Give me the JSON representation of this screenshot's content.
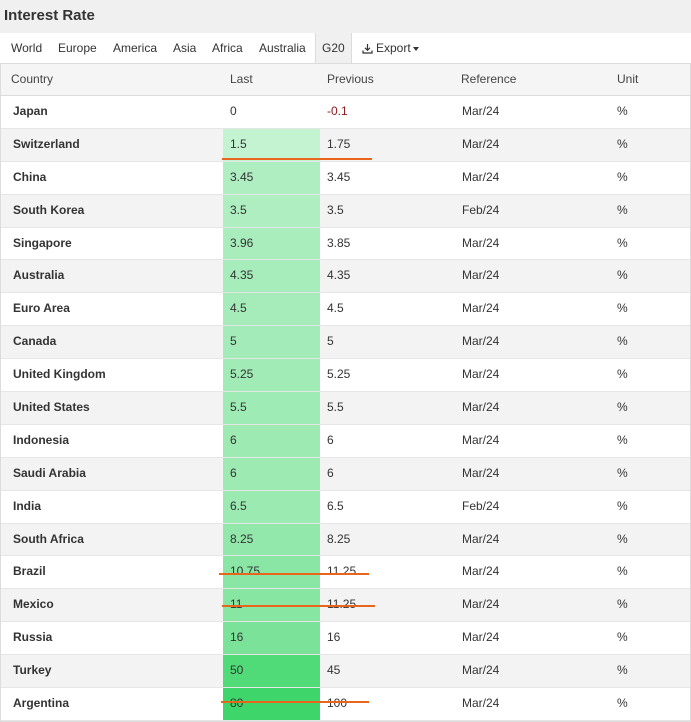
{
  "title": "Interest Rate",
  "tabs": [
    {
      "label": "World"
    },
    {
      "label": "Europe"
    },
    {
      "label": "America"
    },
    {
      "label": "Asia"
    },
    {
      "label": "Africa"
    },
    {
      "label": "Australia"
    },
    {
      "label": "G20",
      "active": true
    },
    {
      "label": "Export",
      "icon": "download-icon"
    }
  ],
  "columns": {
    "country": "Country",
    "last": "Last",
    "previous": "Previous",
    "reference": "Reference",
    "unit": "Unit"
  },
  "rows": [
    {
      "country": "Japan",
      "last": "0",
      "previous": "-0.1",
      "reference": "Mar/24",
      "unit": "%"
    },
    {
      "country": "Switzerland",
      "last": "1.5",
      "previous": "1.75",
      "reference": "Mar/24",
      "unit": "%"
    },
    {
      "country": "China",
      "last": "3.45",
      "previous": "3.45",
      "reference": "Mar/24",
      "unit": "%"
    },
    {
      "country": "South Korea",
      "last": "3.5",
      "previous": "3.5",
      "reference": "Feb/24",
      "unit": "%"
    },
    {
      "country": "Singapore",
      "last": "3.96",
      "previous": "3.85",
      "reference": "Mar/24",
      "unit": "%"
    },
    {
      "country": "Australia",
      "last": "4.35",
      "previous": "4.35",
      "reference": "Mar/24",
      "unit": "%"
    },
    {
      "country": "Euro Area",
      "last": "4.5",
      "previous": "4.5",
      "reference": "Mar/24",
      "unit": "%"
    },
    {
      "country": "Canada",
      "last": "5",
      "previous": "5",
      "reference": "Mar/24",
      "unit": "%"
    },
    {
      "country": "United Kingdom",
      "last": "5.25",
      "previous": "5.25",
      "reference": "Mar/24",
      "unit": "%"
    },
    {
      "country": "United States",
      "last": "5.5",
      "previous": "5.5",
      "reference": "Mar/24",
      "unit": "%"
    },
    {
      "country": "Indonesia",
      "last": "6",
      "previous": "6",
      "reference": "Mar/24",
      "unit": "%"
    },
    {
      "country": "Saudi Arabia",
      "last": "6",
      "previous": "6",
      "reference": "Mar/24",
      "unit": "%"
    },
    {
      "country": "India",
      "last": "6.5",
      "previous": "6.5",
      "reference": "Feb/24",
      "unit": "%"
    },
    {
      "country": "South Africa",
      "last": "8.25",
      "previous": "8.25",
      "reference": "Mar/24",
      "unit": "%"
    },
    {
      "country": "Brazil",
      "last": "10.75",
      "previous": "11.25",
      "reference": "Mar/24",
      "unit": "%"
    },
    {
      "country": "Mexico",
      "last": "11",
      "previous": "11.25",
      "reference": "Mar/24",
      "unit": "%"
    },
    {
      "country": "Russia",
      "last": "16",
      "previous": "16",
      "reference": "Mar/24",
      "unit": "%"
    },
    {
      "country": "Turkey",
      "last": "50",
      "previous": "45",
      "reference": "Mar/24",
      "unit": "%"
    },
    {
      "country": "Argentina",
      "last": "80",
      "previous": "100",
      "reference": "Mar/24",
      "unit": "%"
    }
  ],
  "colors": {
    "highlight_underline": "#e8651e",
    "heat_low": "#ffffff",
    "heat_high": "#3ed66a",
    "negative": "#8b1a1a"
  }
}
